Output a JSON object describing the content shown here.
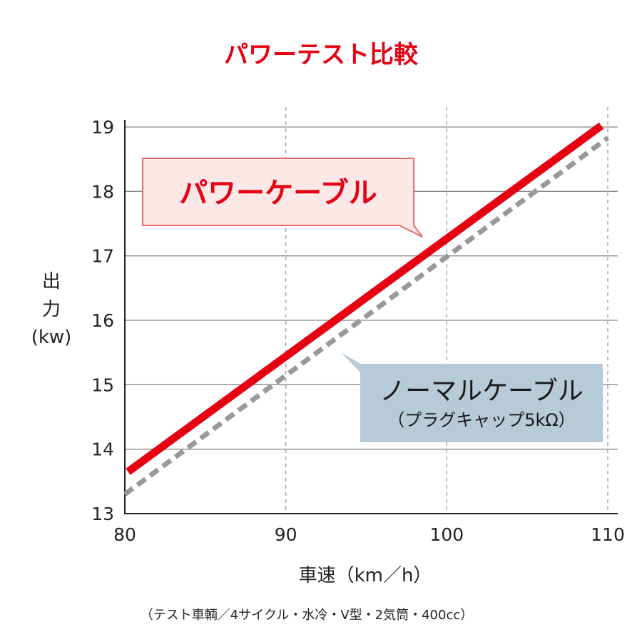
{
  "title": "パワーテスト比較",
  "note": "（テスト車輌／4サイクル・水冷・V型・2気筒・400cc）",
  "colors": {
    "title": "#e60012",
    "power": "#e60012",
    "normal": "#999999",
    "grid_h": "#888888",
    "grid_v": "#9a9a9a",
    "power_box_fill": "#fde8e8",
    "power_box_stroke": "#e86a6a",
    "normal_box_fill": "#b7cad7",
    "normal_text": "#1a1a1a"
  },
  "chart_data": {
    "type": "line",
    "title": "パワーテスト比較",
    "xlabel": "車速（km／h）",
    "ylabel_lines": [
      "出",
      "力",
      "(kw)"
    ],
    "xlim": [
      80,
      110
    ],
    "ylim": [
      13,
      19
    ],
    "xticks": [
      80,
      90,
      100,
      110
    ],
    "yticks": [
      13,
      14,
      15,
      16,
      17,
      18,
      19
    ],
    "grid": {
      "horizontal": true,
      "vertical_dashed": true
    },
    "series": [
      {
        "name": "パワーケーブル",
        "style": "solid",
        "x": [
          80.2,
          109.6
        ],
        "y": [
          13.65,
          19.02
        ]
      },
      {
        "name": "ノーマルケーブル",
        "subname": "（プラグキャップ5kΩ）",
        "style": "dashed",
        "x": [
          80,
          110
        ],
        "y": [
          13.3,
          18.83
        ]
      }
    ]
  }
}
